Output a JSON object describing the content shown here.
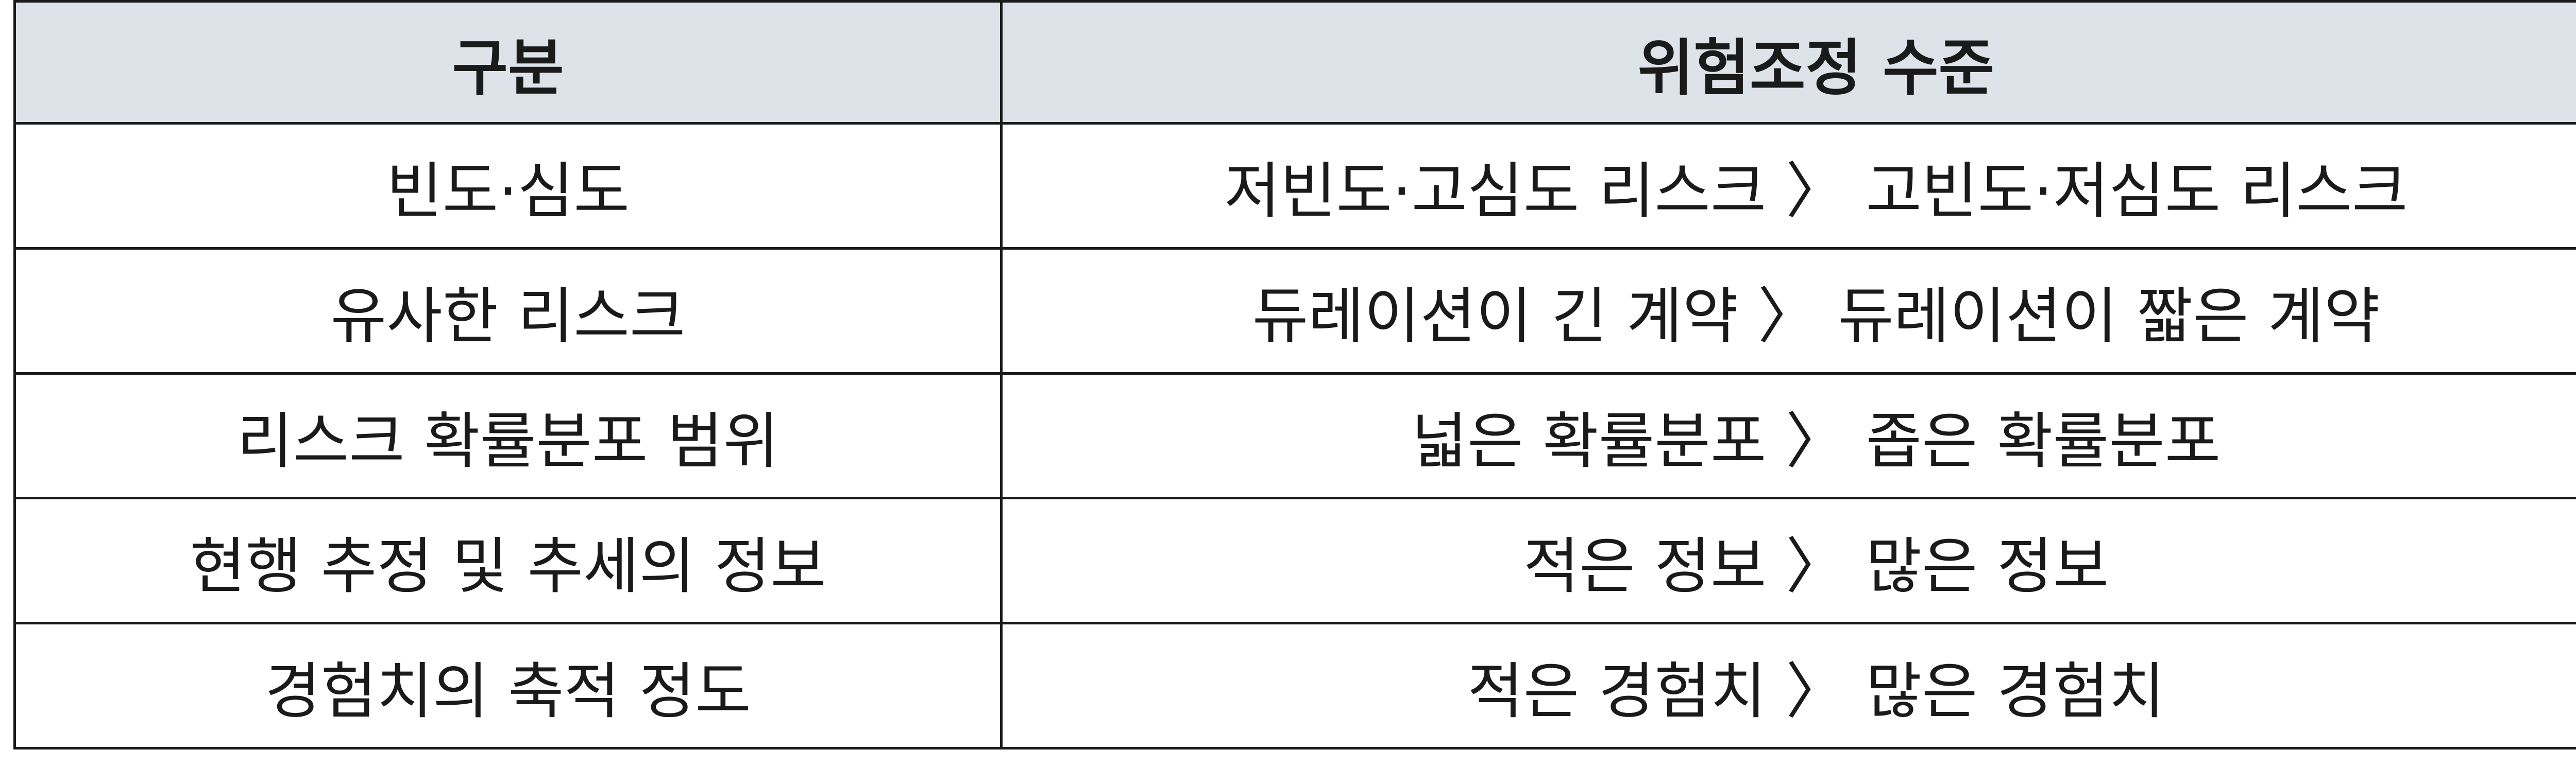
{
  "table": {
    "headers": [
      "구분",
      "위험조정 수준"
    ],
    "rows": [
      {
        "category": "빈도·심도",
        "level": "저빈도·고심도 리스크 〉 고빈도·저심도 리스크"
      },
      {
        "category": "유사한 리스크",
        "level": "듀레이션이 긴 계약 〉 듀레이션이 짧은 계약"
      },
      {
        "category": "리스크 확률분포 범위",
        "level": "넓은 확률분포 〉 좁은 확률분포"
      },
      {
        "category": "현행 추정 및 추세의 정보",
        "level": "적은 정보 〉 많은 정보"
      },
      {
        "category": "경험치의 축적 정도",
        "level": "적은 경험치 〉 많은 경험치"
      }
    ]
  },
  "colors": {
    "header_background": "#dde3e8",
    "border": "#1a1a1a",
    "text": "#1a1a1a"
  }
}
